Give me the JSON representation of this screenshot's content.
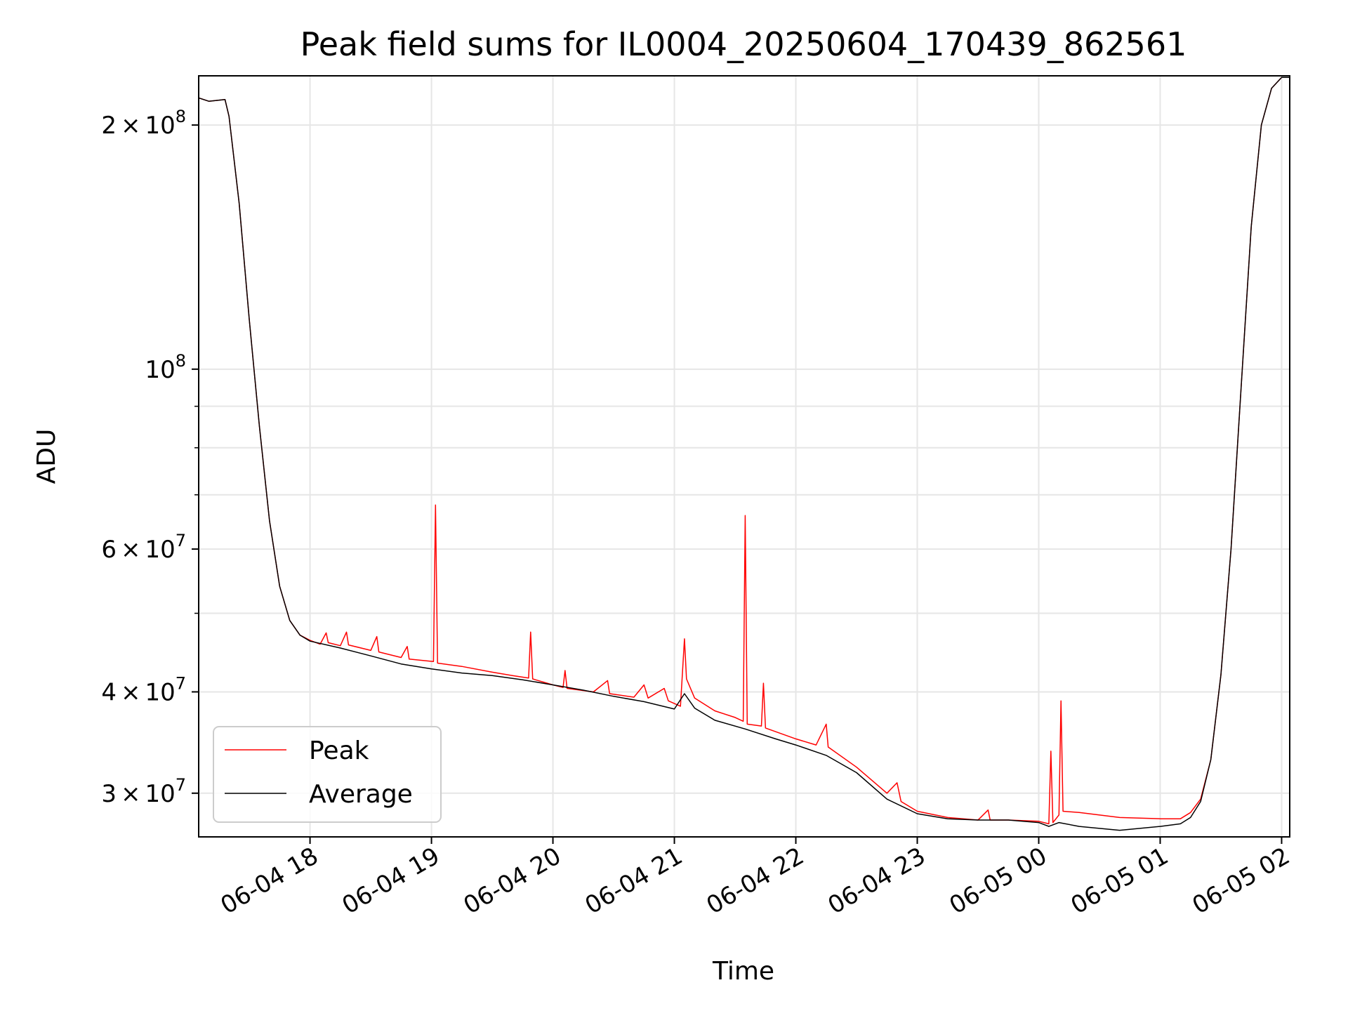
{
  "chart_data": {
    "type": "line",
    "title": "Peak field sums for IL0004_20250604_170439_862561",
    "xlabel": "Time",
    "ylabel": "ADU",
    "y_scale": "log",
    "ylim": [
      26500000,
      230000000
    ],
    "xlim": [
      "2025-06-04 17:05",
      "2025-06-05 02:04"
    ],
    "grid": true,
    "legend_position": "lower-left",
    "x_ticks": [
      {
        "t": "2025-06-04 18:00",
        "label": "06-04 18"
      },
      {
        "t": "2025-06-04 19:00",
        "label": "06-04 19"
      },
      {
        "t": "2025-06-04 20:00",
        "label": "06-04 20"
      },
      {
        "t": "2025-06-04 21:00",
        "label": "06-04 21"
      },
      {
        "t": "2025-06-04 22:00",
        "label": "06-04 22"
      },
      {
        "t": "2025-06-04 23:00",
        "label": "06-04 23"
      },
      {
        "t": "2025-06-05 00:00",
        "label": "06-05 00"
      },
      {
        "t": "2025-06-05 01:00",
        "label": "06-05 01"
      },
      {
        "t": "2025-06-05 02:00",
        "label": "06-05 02"
      }
    ],
    "y_ticks": [
      {
        "value": 30000000,
        "mantissa": "3",
        "exponent": "7"
      },
      {
        "value": 40000000,
        "mantissa": "4",
        "exponent": "7"
      },
      {
        "value": 60000000,
        "mantissa": "6",
        "exponent": "7"
      },
      {
        "value": 100000000,
        "mantissa": "",
        "exponent": "8"
      },
      {
        "value": 200000000,
        "mantissa": "2",
        "exponent": "8"
      }
    ],
    "y_minor_ticks": [
      50000000,
      70000000,
      80000000,
      90000000
    ],
    "series": [
      {
        "name": "Peak",
        "color": "#ff0000",
        "points": [
          [
            "2025-06-04 17:05",
            216000000
          ],
          [
            "2025-06-04 17:10",
            214000000
          ],
          [
            "2025-06-04 17:18",
            215000000
          ],
          [
            "2025-06-04 17:20",
            205000000
          ],
          [
            "2025-06-04 17:25",
            160000000
          ],
          [
            "2025-06-04 17:30",
            115000000
          ],
          [
            "2025-06-04 17:35",
            85000000
          ],
          [
            "2025-06-04 17:40",
            65000000
          ],
          [
            "2025-06-04 17:45",
            54000000
          ],
          [
            "2025-06-04 17:50",
            49000000
          ],
          [
            "2025-06-04 17:55",
            47000000
          ],
          [
            "2025-06-04 18:00",
            46300000
          ],
          [
            "2025-06-04 18:05",
            45800000
          ],
          [
            "2025-06-04 18:08",
            47300000
          ],
          [
            "2025-06-04 18:09",
            46000000
          ],
          [
            "2025-06-04 18:15",
            45600000
          ],
          [
            "2025-06-04 18:18",
            47400000
          ],
          [
            "2025-06-04 18:19",
            45700000
          ],
          [
            "2025-06-04 18:30",
            45000000
          ],
          [
            "2025-06-04 18:33",
            46800000
          ],
          [
            "2025-06-04 18:34",
            44800000
          ],
          [
            "2025-06-04 18:45",
            44100000
          ],
          [
            "2025-06-04 18:48",
            45500000
          ],
          [
            "2025-06-04 18:49",
            43900000
          ],
          [
            "2025-06-04 19:01",
            43600000
          ],
          [
            "2025-06-04 19:02",
            68000000
          ],
          [
            "2025-06-04 19:03",
            43400000
          ],
          [
            "2025-06-04 19:15",
            43000000
          ],
          [
            "2025-06-04 19:30",
            42300000
          ],
          [
            "2025-06-04 19:40",
            41900000
          ],
          [
            "2025-06-04 19:48",
            41600000
          ],
          [
            "2025-06-04 19:49",
            47400000
          ],
          [
            "2025-06-04 19:50",
            41500000
          ],
          [
            "2025-06-04 20:00",
            40800000
          ],
          [
            "2025-06-04 20:05",
            40500000
          ],
          [
            "2025-06-04 20:06",
            42500000
          ],
          [
            "2025-06-04 20:07",
            40400000
          ],
          [
            "2025-06-04 20:20",
            40000000
          ],
          [
            "2025-06-04 20:27",
            41300000
          ],
          [
            "2025-06-04 20:28",
            39800000
          ],
          [
            "2025-06-04 20:40",
            39400000
          ],
          [
            "2025-06-04 20:45",
            40800000
          ],
          [
            "2025-06-04 20:47",
            39300000
          ],
          [
            "2025-06-04 20:55",
            40400000
          ],
          [
            "2025-06-04 20:57",
            39000000
          ],
          [
            "2025-06-04 21:03",
            38400000
          ],
          [
            "2025-06-04 21:05",
            46500000
          ],
          [
            "2025-06-04 21:06",
            41500000
          ],
          [
            "2025-06-04 21:10",
            39300000
          ],
          [
            "2025-06-04 21:20",
            37900000
          ],
          [
            "2025-06-04 21:30",
            37200000
          ],
          [
            "2025-06-04 21:34",
            36800000
          ],
          [
            "2025-06-04 21:35",
            66000000
          ],
          [
            "2025-06-04 21:36",
            36500000
          ],
          [
            "2025-06-04 21:43",
            36300000
          ],
          [
            "2025-06-04 21:44",
            41000000
          ],
          [
            "2025-06-04 21:45",
            36100000
          ],
          [
            "2025-06-04 22:00",
            35000000
          ],
          [
            "2025-06-04 22:10",
            34400000
          ],
          [
            "2025-06-04 22:15",
            36500000
          ],
          [
            "2025-06-04 22:16",
            34200000
          ],
          [
            "2025-06-04 22:30",
            32300000
          ],
          [
            "2025-06-04 22:45",
            30000000
          ],
          [
            "2025-06-04 22:50",
            30900000
          ],
          [
            "2025-06-04 22:52",
            29300000
          ],
          [
            "2025-06-04 23:00",
            28500000
          ],
          [
            "2025-06-04 23:15",
            28000000
          ],
          [
            "2025-06-04 23:30",
            27800000
          ],
          [
            "2025-06-04 23:35",
            28600000
          ],
          [
            "2025-06-04 23:36",
            27800000
          ],
          [
            "2025-06-04 23:45",
            27800000
          ],
          [
            "2025-06-05 00:00",
            27700000
          ],
          [
            "2025-06-05 00:05",
            27500000
          ],
          [
            "2025-06-05 00:06",
            33800000
          ],
          [
            "2025-06-05 00:07",
            27600000
          ],
          [
            "2025-06-05 00:10",
            28200000
          ],
          [
            "2025-06-05 00:11",
            39000000
          ],
          [
            "2025-06-05 00:12",
            28500000
          ],
          [
            "2025-06-05 00:20",
            28400000
          ],
          [
            "2025-06-05 00:40",
            28000000
          ],
          [
            "2025-06-05 01:00",
            27900000
          ],
          [
            "2025-06-05 01:10",
            27900000
          ],
          [
            "2025-06-05 01:15",
            28400000
          ],
          [
            "2025-06-05 01:20",
            29500000
          ],
          [
            "2025-06-05 01:25",
            33000000
          ],
          [
            "2025-06-05 01:30",
            42000000
          ],
          [
            "2025-06-05 01:35",
            60000000
          ],
          [
            "2025-06-05 01:40",
            95000000
          ],
          [
            "2025-06-05 01:45",
            150000000
          ],
          [
            "2025-06-05 01:50",
            200000000
          ],
          [
            "2025-06-05 01:55",
            222000000
          ],
          [
            "2025-06-05 02:00",
            229000000
          ],
          [
            "2025-06-05 02:04",
            229000000
          ]
        ]
      },
      {
        "name": "Average",
        "color": "#000000",
        "points": [
          [
            "2025-06-04 17:05",
            216000000
          ],
          [
            "2025-06-04 17:10",
            214000000
          ],
          [
            "2025-06-04 17:18",
            215000000
          ],
          [
            "2025-06-04 17:20",
            205000000
          ],
          [
            "2025-06-04 17:25",
            160000000
          ],
          [
            "2025-06-04 17:30",
            115000000
          ],
          [
            "2025-06-04 17:35",
            85000000
          ],
          [
            "2025-06-04 17:40",
            65000000
          ],
          [
            "2025-06-04 17:45",
            54000000
          ],
          [
            "2025-06-04 17:50",
            49000000
          ],
          [
            "2025-06-04 17:55",
            47000000
          ],
          [
            "2025-06-04 18:00",
            46200000
          ],
          [
            "2025-06-04 18:15",
            45300000
          ],
          [
            "2025-06-04 18:30",
            44300000
          ],
          [
            "2025-06-04 18:45",
            43300000
          ],
          [
            "2025-06-04 19:00",
            42700000
          ],
          [
            "2025-06-04 19:15",
            42200000
          ],
          [
            "2025-06-04 19:30",
            41900000
          ],
          [
            "2025-06-04 19:45",
            41400000
          ],
          [
            "2025-06-04 20:00",
            40800000
          ],
          [
            "2025-06-04 20:15",
            40200000
          ],
          [
            "2025-06-04 20:30",
            39500000
          ],
          [
            "2025-06-04 20:45",
            38900000
          ],
          [
            "2025-06-04 21:00",
            38100000
          ],
          [
            "2025-06-04 21:05",
            39800000
          ],
          [
            "2025-06-04 21:10",
            38200000
          ],
          [
            "2025-06-04 21:20",
            36900000
          ],
          [
            "2025-06-04 21:35",
            36000000
          ],
          [
            "2025-06-04 21:50",
            35000000
          ],
          [
            "2025-06-04 22:00",
            34400000
          ],
          [
            "2025-06-04 22:15",
            33400000
          ],
          [
            "2025-06-04 22:30",
            31800000
          ],
          [
            "2025-06-04 22:45",
            29500000
          ],
          [
            "2025-06-04 23:00",
            28300000
          ],
          [
            "2025-06-04 23:15",
            27900000
          ],
          [
            "2025-06-04 23:30",
            27800000
          ],
          [
            "2025-06-04 23:45",
            27800000
          ],
          [
            "2025-06-05 00:00",
            27600000
          ],
          [
            "2025-06-05 00:05",
            27300000
          ],
          [
            "2025-06-05 00:10",
            27600000
          ],
          [
            "2025-06-05 00:20",
            27300000
          ],
          [
            "2025-06-05 00:40",
            27000000
          ],
          [
            "2025-06-05 01:00",
            27300000
          ],
          [
            "2025-06-05 01:10",
            27500000
          ],
          [
            "2025-06-05 01:15",
            28000000
          ],
          [
            "2025-06-05 01:20",
            29300000
          ],
          [
            "2025-06-05 01:25",
            33000000
          ],
          [
            "2025-06-05 01:30",
            42000000
          ],
          [
            "2025-06-05 01:35",
            60000000
          ],
          [
            "2025-06-05 01:40",
            95000000
          ],
          [
            "2025-06-05 01:45",
            150000000
          ],
          [
            "2025-06-05 01:50",
            200000000
          ],
          [
            "2025-06-05 01:55",
            222000000
          ],
          [
            "2025-06-05 02:00",
            229000000
          ],
          [
            "2025-06-05 02:04",
            229000000
          ]
        ]
      }
    ]
  }
}
